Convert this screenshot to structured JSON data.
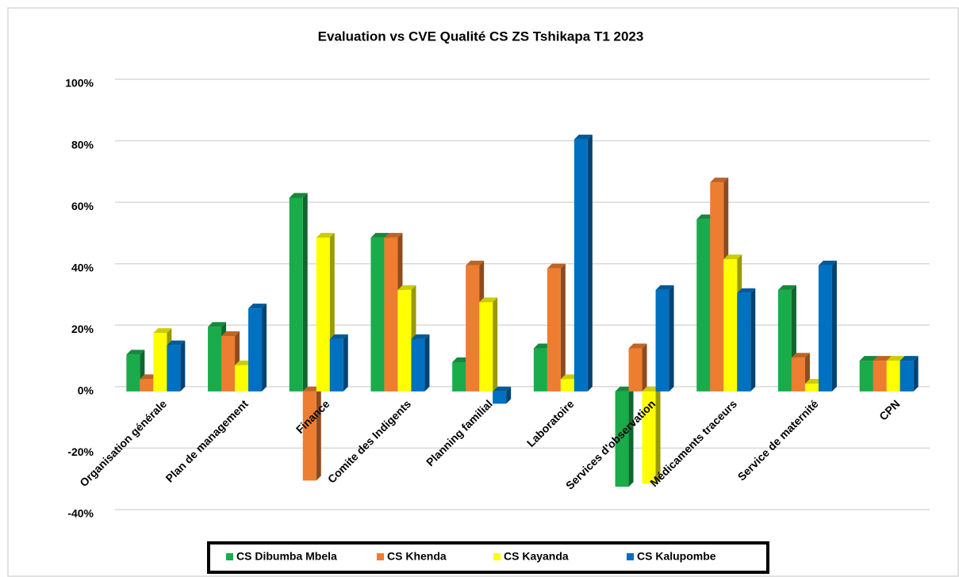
{
  "chart_data": {
    "type": "bar",
    "title": "Evaluation vs CVE Qualité CS ZS Tshikapa T1 2023",
    "categories": [
      "Organisation générale",
      "Plan de management",
      "Finance",
      "Comite des Indigents",
      "Planning familial",
      "Laboratoire",
      "Services d'observation",
      "Médicaments traceurs",
      "Service de maternité",
      "CPN"
    ],
    "series": [
      {
        "name": "CS Dibumba Mbela",
        "color": "#1aab4b",
        "values": [
          12,
          21,
          63,
          50,
          9.5,
          14,
          -31,
          56,
          33,
          10
        ]
      },
      {
        "name": "CS Khenda",
        "color": "#ed7d31",
        "values": [
          4,
          18,
          -29,
          50,
          41,
          40,
          14,
          68,
          11,
          10
        ]
      },
      {
        "name": "CS Kayanda",
        "color": "#ffff00",
        "values": [
          19,
          8.5,
          50,
          33,
          29,
          4,
          -30,
          43,
          2.5,
          10
        ]
      },
      {
        "name": "CS Kalupombe",
        "color": "#0070c0",
        "values": [
          15,
          27,
          17,
          17,
          -4,
          82,
          33,
          32,
          41,
          10
        ]
      }
    ],
    "ylim": [
      -40,
      100
    ],
    "yticks": [
      {
        "value": -40,
        "label": "-40%"
      },
      {
        "value": -20,
        "label": "-20%"
      },
      {
        "value": 0,
        "label": "0%"
      },
      {
        "value": 20,
        "label": "20%"
      },
      {
        "value": 40,
        "label": "40%"
      },
      {
        "value": 60,
        "label": "60%"
      },
      {
        "value": 80,
        "label": "80%"
      },
      {
        "value": 100,
        "label": "100%"
      }
    ],
    "grid": true
  }
}
